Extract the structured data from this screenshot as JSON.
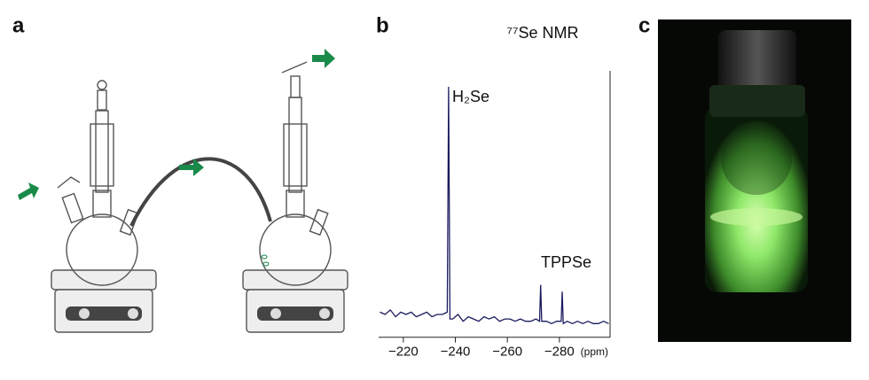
{
  "panel_labels": [
    "a",
    "b",
    "c"
  ],
  "chart_data": {
    "type": "line",
    "title": "⁷⁷Se NMR",
    "x_label": "(ppm)",
    "annotations": [
      "H₂Se",
      "TPPSe"
    ],
    "color": "#1a1a5e",
    "x": [
      -211,
      -213,
      -215,
      -217,
      -219,
      -221,
      -223,
      -225,
      -227,
      -229,
      -231,
      -233,
      -235,
      -236.9,
      -237.4,
      -237.9,
      -239,
      -241,
      -243,
      -245,
      -247,
      -249,
      -251,
      -253,
      -255,
      -257,
      -259,
      -261,
      -263,
      -265,
      -267,
      -269,
      -271,
      -272.4,
      -272.8,
      -273.2,
      -275,
      -277,
      -279,
      -280.7,
      -281.1,
      -281.5,
      -283,
      -285,
      -287,
      -289,
      -291,
      -293,
      -295,
      -297,
      -299
    ],
    "values": [
      1,
      0,
      2,
      -1,
      1,
      0,
      1,
      -1,
      0,
      1,
      -1,
      0,
      0,
      1,
      100,
      -2,
      -2,
      0,
      -3,
      -1,
      -2,
      -3,
      -1,
      -2,
      -1,
      -3,
      -2,
      -2,
      -3,
      -2,
      -3,
      -3,
      -2,
      -3,
      13,
      -3,
      -3,
      -4,
      -3,
      -3,
      10,
      -4,
      -3,
      -4,
      -3,
      -4,
      -3,
      -4,
      -4,
      -3,
      -4
    ],
    "xlim": [
      -210.5,
      -299.5
    ],
    "ylim": [
      -10,
      108
    ],
    "xticks": [
      {
        "value": -220,
        "label": "−220"
      },
      {
        "value": -240,
        "label": "−240"
      },
      {
        "value": -260,
        "label": "−260"
      },
      {
        "value": -280,
        "label": "−280"
      }
    ]
  }
}
